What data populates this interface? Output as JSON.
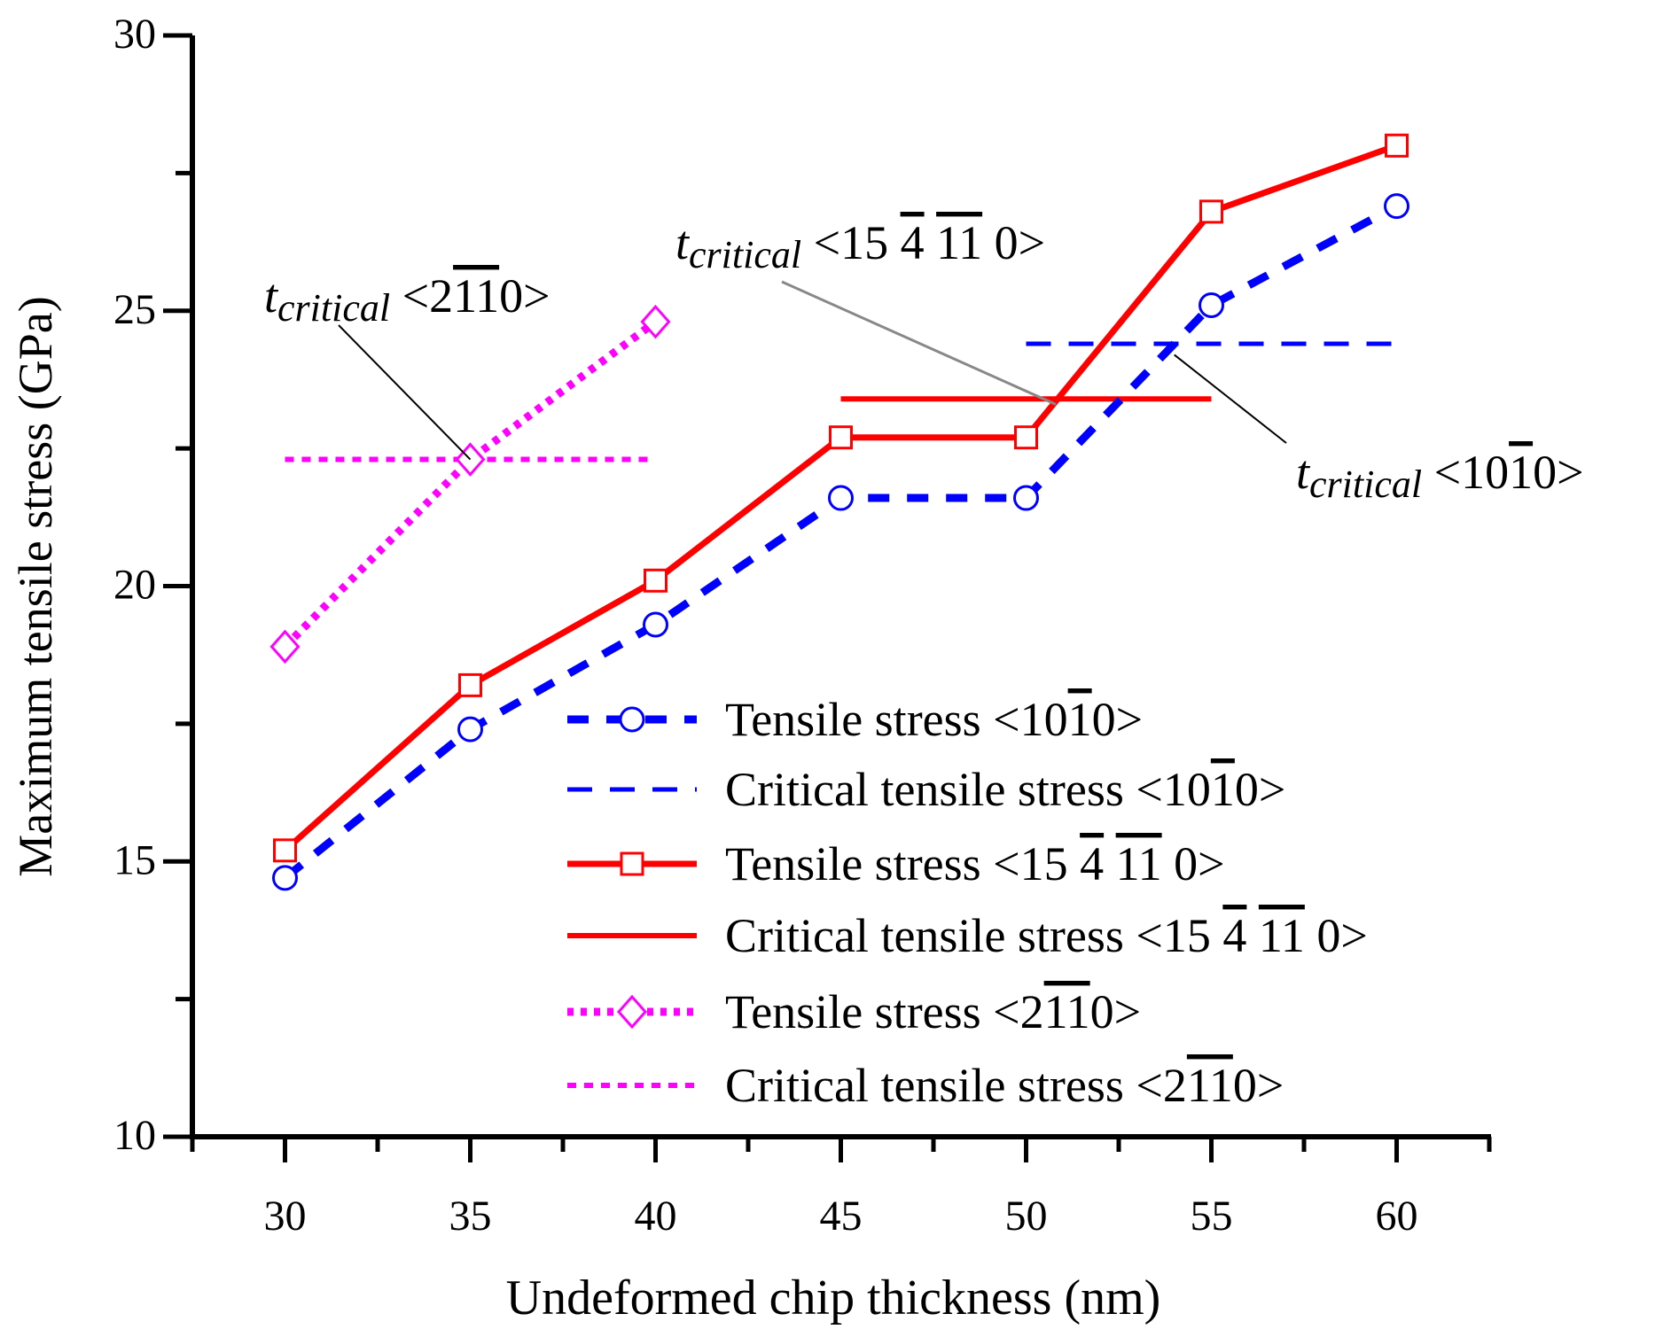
{
  "chart_data": {
    "type": "line",
    "title": "",
    "xlabel": "Undeformed chip thickness (nm)",
    "ylabel": "Maximum tensile stress (GPa)",
    "xlim": [
      27.5,
      62.5
    ],
    "ylim": [
      10,
      30
    ],
    "xticks": [
      30,
      35,
      40,
      45,
      50,
      55,
      60
    ],
    "yticks": [
      10,
      15,
      20,
      25,
      30
    ],
    "grid": false,
    "legend_position": "lower-right",
    "series": [
      {
        "id": "ts1010",
        "name": "Tensile stress <1010>",
        "name_parts": [
          {
            "t": "Tensile stress <10"
          },
          {
            "t": "1",
            "ol": true
          },
          {
            "t": "0>"
          }
        ],
        "color": "#0000ff",
        "style": "dash-thick",
        "marker": "circle",
        "x": [
          30,
          35,
          40,
          45,
          50,
          55,
          60
        ],
        "y": [
          14.7,
          17.4,
          19.3,
          21.6,
          21.6,
          25.1,
          26.9
        ]
      },
      {
        "id": "crit1010",
        "name": "Critical tensile stress <1010>",
        "name_parts": [
          {
            "t": "Critical tensile stress <10"
          },
          {
            "t": "1",
            "ol": true
          },
          {
            "t": "0>"
          }
        ],
        "color": "#0000ff",
        "style": "dash",
        "marker": "none",
        "x": [
          50,
          60
        ],
        "y": [
          24.4,
          24.4
        ]
      },
      {
        "id": "ts15",
        "name": "Tensile stress <15 4 11 0>",
        "name_parts": [
          {
            "t": "Tensile stress <15 "
          },
          {
            "t": "4",
            "ol": true
          },
          {
            "t": " "
          },
          {
            "t": "11",
            "ol": true
          },
          {
            "t": " 0>"
          }
        ],
        "color": "#ff0000",
        "style": "solid-thick",
        "marker": "square",
        "x": [
          30,
          35,
          40,
          45,
          50,
          55,
          60
        ],
        "y": [
          15.2,
          18.2,
          20.1,
          22.7,
          22.7,
          26.8,
          28.0
        ]
      },
      {
        "id": "crit15",
        "name": "Critical tensile stress <15 4 11 0>",
        "name_parts": [
          {
            "t": "Critical tensile stress <15 "
          },
          {
            "t": "4",
            "ol": true
          },
          {
            "t": " "
          },
          {
            "t": "11",
            "ol": true
          },
          {
            "t": " 0>"
          }
        ],
        "color": "#ff0000",
        "style": "solid",
        "marker": "none",
        "x": [
          45,
          55
        ],
        "y": [
          23.4,
          23.4
        ]
      },
      {
        "id": "ts2110",
        "name": "Tensile stress <2110>",
        "name_parts": [
          {
            "t": "Tensile stress <2"
          },
          {
            "t": "11",
            "ol": true
          },
          {
            "t": "0>"
          }
        ],
        "color": "#ff00ff",
        "style": "dot-thick",
        "marker": "diamond",
        "x": [
          30,
          35,
          40
        ],
        "y": [
          18.9,
          22.3,
          24.8
        ]
      },
      {
        "id": "crit2110",
        "name": "Critical tensile stress <2110>",
        "name_parts": [
          {
            "t": "Critical tensile stress <2"
          },
          {
            "t": "11",
            "ol": true
          },
          {
            "t": "0>"
          }
        ],
        "color": "#ff00ff",
        "style": "dot",
        "marker": "none",
        "x": [
          30,
          40
        ],
        "y": [
          22.3,
          22.3
        ]
      }
    ],
    "annotations": [
      {
        "id": "ann2110",
        "text": "tcritical <2110>",
        "parts": [
          {
            "t": "t",
            "italic": true
          },
          {
            "t": "critical",
            "italic": true,
            "sub": true
          },
          {
            "t": " <2"
          },
          {
            "t": "11",
            "ol": true
          },
          {
            "t": "0>"
          }
        ],
        "arrow_to": {
          "x": 35,
          "y": 22.3
        },
        "leader_color": "#000000"
      },
      {
        "id": "ann15",
        "text": "tcritical <15 4 11 0>",
        "parts": [
          {
            "t": "t",
            "italic": true
          },
          {
            "t": "critical",
            "italic": true,
            "sub": true
          },
          {
            "t": " <15 "
          },
          {
            "t": "4",
            "ol": true
          },
          {
            "t": " "
          },
          {
            "t": "11",
            "ol": true
          },
          {
            "t": " 0>"
          }
        ],
        "arrow_to": {
          "x": 50.8,
          "y": 23.3
        },
        "leader_color": "#888888"
      },
      {
        "id": "ann1010",
        "text": "tcritical <1010>",
        "parts": [
          {
            "t": "t",
            "italic": true
          },
          {
            "t": "critical",
            "italic": true,
            "sub": true
          },
          {
            "t": " <10"
          },
          {
            "t": "1",
            "ol": true
          },
          {
            "t": "0>"
          }
        ],
        "arrow_to": {
          "x": 54,
          "y": 24.2
        },
        "leader_color": "#000000"
      }
    ]
  }
}
